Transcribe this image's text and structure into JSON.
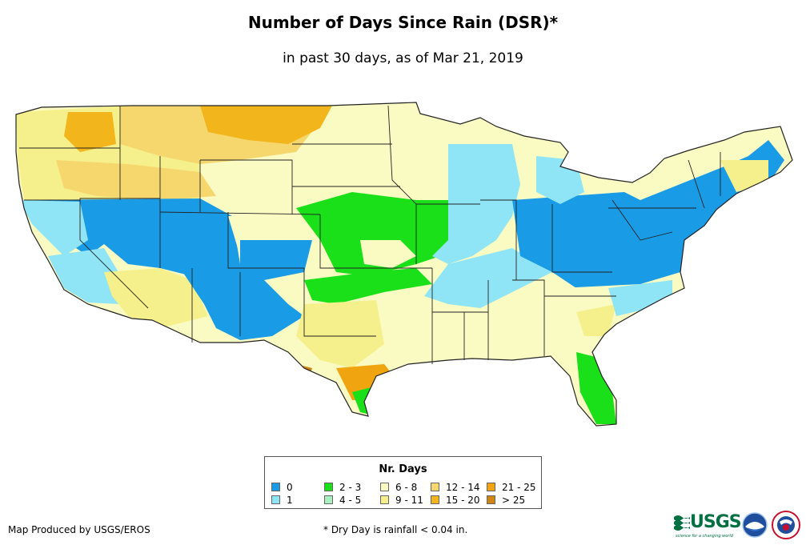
{
  "title": "Number of Days Since Rain (DSR)*",
  "subtitle": "in past 30 days, as of Mar 21, 2019",
  "legend": {
    "title": "Nr. Days",
    "items": [
      {
        "label": "0",
        "color": "#1a9be6"
      },
      {
        "label": "1",
        "color": "#8fe5f5"
      },
      {
        "label": "2 - 3",
        "color": "#19e019"
      },
      {
        "label": "4 - 5",
        "color": "#a8f0c0"
      },
      {
        "label": "6 - 8",
        "color": "#fafbc3"
      },
      {
        "label": "9 - 11",
        "color": "#f6f08c"
      },
      {
        "label": "12 - 14",
        "color": "#f5d76e"
      },
      {
        "label": "15 - 20",
        "color": "#f2b51c"
      },
      {
        "label": "21 - 25",
        "color": "#f0a510"
      },
      {
        "label": "> 25",
        "color": "#cf8411"
      }
    ]
  },
  "footer": {
    "producer": "Map Produced by USGS/EROS",
    "note": "* Dry Day is rainfall < 0.04 in."
  },
  "logos": {
    "usgs": "USGS",
    "usgs_tagline": "science for a changing world",
    "noaa": "noaa-logo",
    "nws": "nws-logo"
  }
}
